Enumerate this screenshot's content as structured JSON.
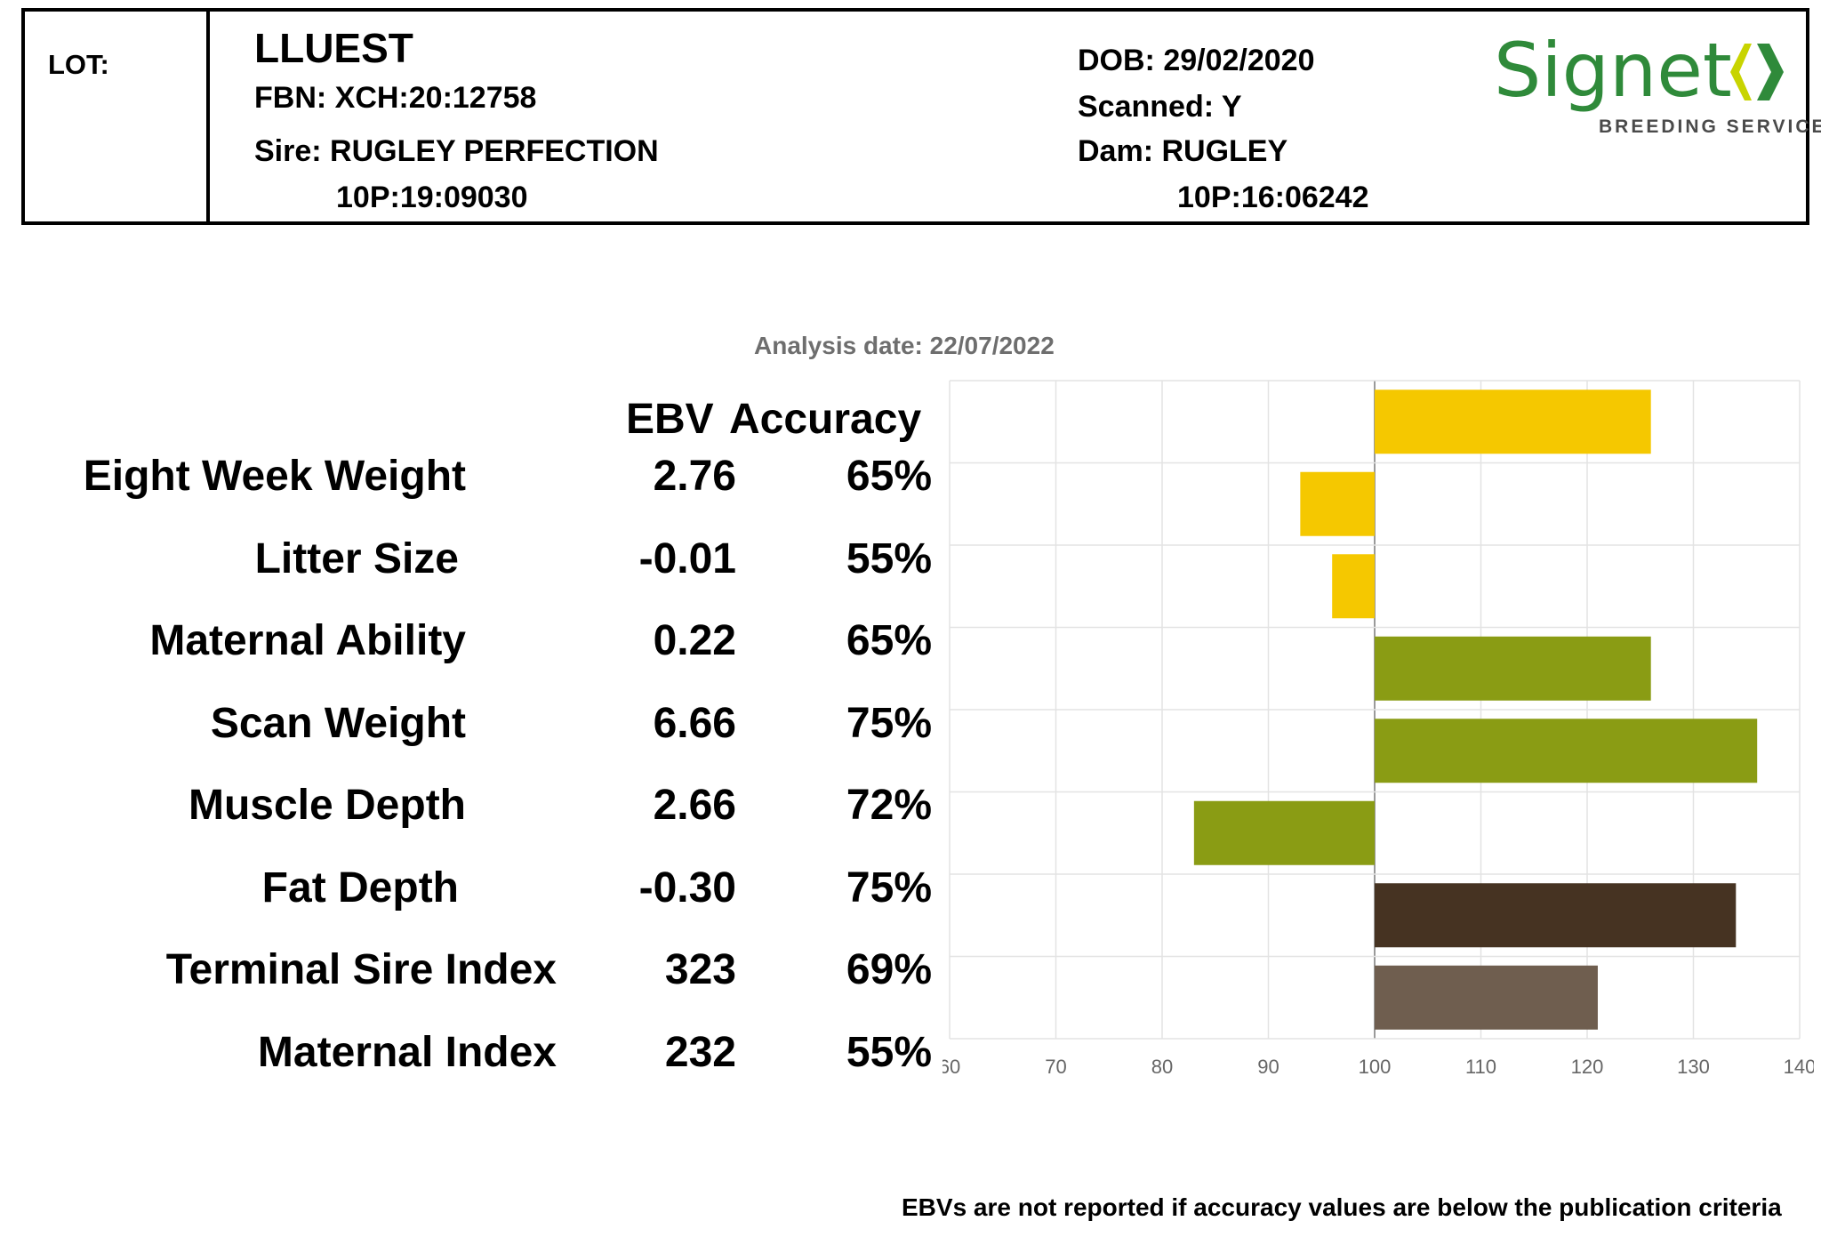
{
  "header": {
    "lot_label": "LOT:",
    "name": "LLUEST",
    "fbn": "FBN: XCH:20:12758",
    "sire": "Sire: RUGLEY PERFECTION",
    "sire_id": "10P:19:09030",
    "dob": "DOB: 29/02/2020",
    "scanned": "Scanned: Y",
    "dam": "Dam: RUGLEY",
    "dam_id": "10P:16:06242"
  },
  "logo": {
    "word": "Signet",
    "subtitle": "BREEDING SERVICES",
    "colors": {
      "word": "#2f8a3a",
      "chevron_light": "#c8d400",
      "chevron_dark": "#2f8a3a"
    }
  },
  "table": {
    "analysis_date": "Analysis date: 22/07/2022",
    "ebv_header": "EBV",
    "accuracy_header": "Accuracy"
  },
  "footer": "EBVs are not reported if accuracy values are below the publication criteria",
  "chart_data": {
    "type": "bar",
    "orientation": "horizontal",
    "categories": [
      "Eight Week Weight",
      "Litter Size",
      "Maternal Ability",
      "Scan Weight",
      "Muscle Depth",
      "Fat Depth",
      "Terminal Sire Index",
      "Maternal Index"
    ],
    "ebv": [
      "2.76",
      "-0.01",
      "0.22",
      "6.66",
      "2.66",
      "-0.30",
      "323",
      "232"
    ],
    "accuracy": [
      "65%",
      "55%",
      "65%",
      "75%",
      "72%",
      "75%",
      "69%",
      "55%"
    ],
    "values": [
      126,
      93,
      96,
      126,
      136,
      83,
      134,
      121
    ],
    "baseline": 100,
    "colors": [
      "#f5c800",
      "#f5c800",
      "#f5c800",
      "#8a9c14",
      "#8a9c14",
      "#8a9c14",
      "#463322",
      "#6f5e4f"
    ],
    "xlim": [
      60,
      140
    ],
    "xticks": [
      "60",
      "70",
      "80",
      "90",
      "100",
      "110",
      "120",
      "130",
      "140"
    ],
    "grid": true,
    "title": "",
    "xlabel": "",
    "ylabel": ""
  }
}
